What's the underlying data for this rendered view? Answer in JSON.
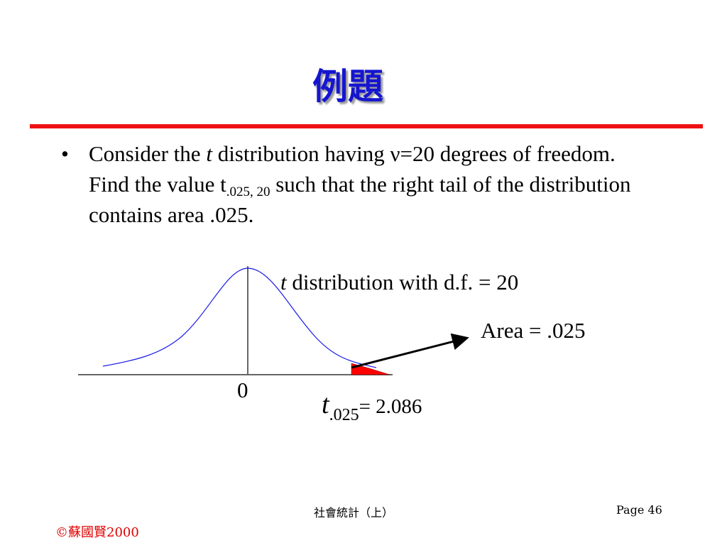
{
  "slide": {
    "title": "例題",
    "bullet_symbol": "•",
    "body": {
      "p1": "Consider the ",
      "t_italic": "t",
      "p2": " distribution having ",
      "nu": "ν",
      "p3": "=20 degrees of freedom. Find the value t",
      "sub": ".025, 20",
      "p4": " such that the right tail of the distribution contains area .025."
    }
  },
  "diagram": {
    "caption_italic": "t",
    "caption_rest": " distribution with d.f. = 20",
    "area_label": "Area = .025",
    "zero_label": "0",
    "t_label": "t",
    "t_sub": ".025",
    "t_value": "= 2.086",
    "colors": {
      "curve": "#1a1ae6",
      "tail": "#ff0000",
      "axis": "#666666"
    }
  },
  "footer": {
    "course": "社會統計（上）",
    "page": "Page  46",
    "copyright": "©蘇國賢2000",
    "copyright_color": "#e00000"
  }
}
